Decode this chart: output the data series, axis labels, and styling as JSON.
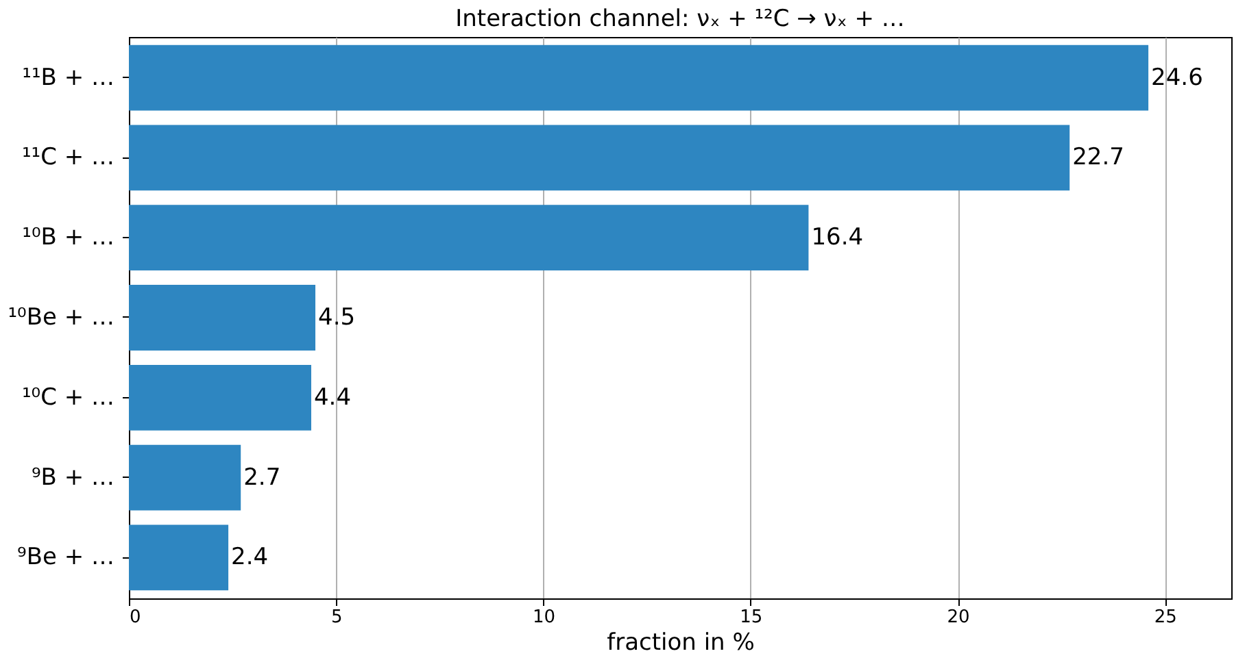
{
  "chart_data": {
    "type": "bar",
    "orientation": "horizontal",
    "title": "Interaction channel: νₓ + ¹²C → νₓ + …",
    "xlabel": "fraction in %",
    "categories": [
      "¹¹B + …",
      "¹¹C + …",
      "¹⁰B + …",
      "¹⁰Be + …",
      "¹⁰C + …",
      "⁹B + …",
      "⁹Be + …"
    ],
    "values": [
      24.6,
      22.7,
      16.4,
      4.5,
      4.4,
      2.7,
      2.4
    ],
    "color": "#2e86c1",
    "xlim": [
      0,
      26.6
    ],
    "xticks": [
      0,
      5,
      10,
      15,
      20,
      25
    ],
    "grid": "x",
    "data_labels": true
  }
}
